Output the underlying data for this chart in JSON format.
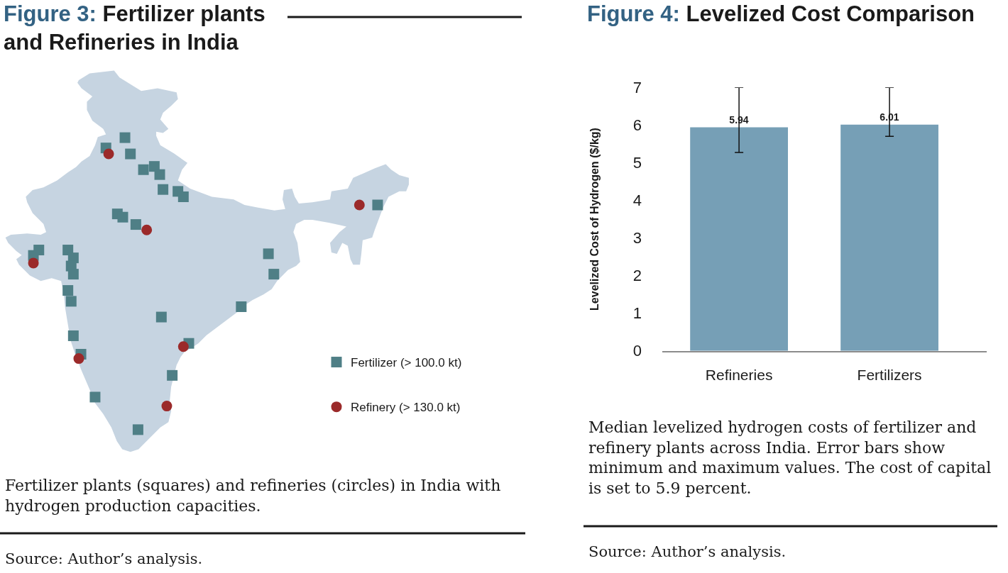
{
  "chart_data": [
    {
      "type": "other",
      "title": "Figure 3: Fertilizer plants and Refineries in India",
      "series": [
        {
          "name": "Fertilizer (> 100.0 kt)",
          "color": "#4f7f86",
          "marker": "square"
        },
        {
          "name": "Refinery (> 130.0 kt)",
          "color": "#9b2a2a",
          "marker": "circle"
        }
      ],
      "legend": "bottom right",
      "annotations": [
        "Fertilizer plants (squares) and refineries (circles) in India with hydrogen production capacities.",
        "Source: Author’s analysis."
      ]
    },
    {
      "type": "bar",
      "title": "Figure 4: Levelized Cost Comparison",
      "ylabel": "Levelized Cost of Hydrogen ($/kg)",
      "categories": [
        "Refineries",
        "Fertilizers"
      ],
      "values": [
        5.94,
        6.01
      ],
      "color": "#769fb6",
      "errors": [
        [
          5.27,
          7
        ],
        [
          5.7,
          7
        ]
      ],
      "data_labels": true,
      "ylim": [
        0,
        7
      ],
      "yticks": [
        0,
        1,
        2,
        3,
        4,
        5,
        6,
        7
      ],
      "annotations": [
        "Median levelized hydrogen costs of fertilizer and refinery plants across India. Error bars show minimum and maximum values. The cost of capital is set to 5.9 percent.",
        "Source: Author’s analysis."
      ]
    }
  ]
}
